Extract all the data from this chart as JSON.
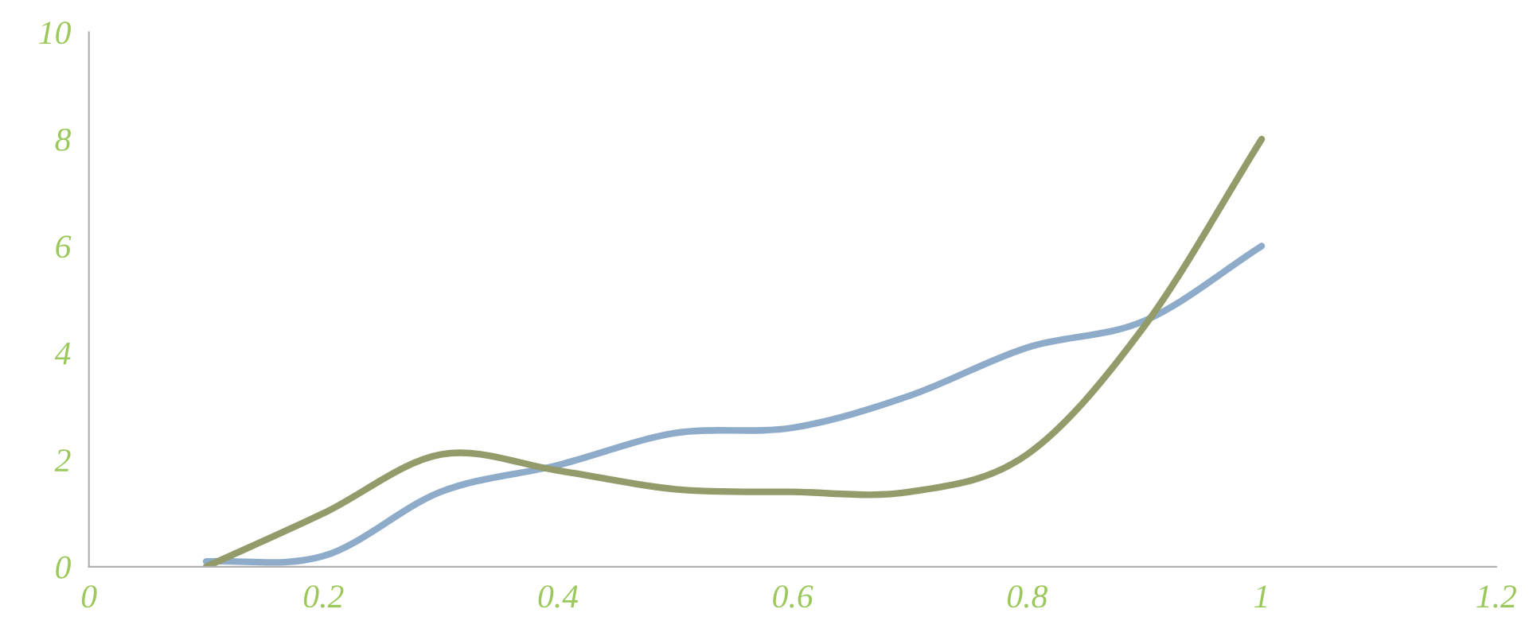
{
  "chart_data": {
    "type": "line",
    "x": [
      0.1,
      0.2,
      0.3,
      0.4,
      0.5,
      0.6,
      0.7,
      0.8,
      0.9,
      1.0
    ],
    "series": [
      {
        "color": "#8eacc9",
        "values": [
          0.1,
          0.2,
          1.4,
          1.9,
          2.5,
          2.6,
          3.2,
          4.1,
          4.6,
          6.0
        ]
      },
      {
        "color": "#939b6a",
        "values": [
          0.0,
          1.0,
          2.1,
          1.8,
          1.45,
          1.4,
          1.4,
          2.1,
          4.5,
          8.0
        ]
      }
    ],
    "xlim": [
      0,
      1.2
    ],
    "xticks": [
      0,
      0.2,
      0.4,
      0.6,
      0.8,
      1,
      1.2
    ],
    "ylim": [
      0,
      10
    ],
    "yticks": [
      0,
      2,
      4,
      6,
      8,
      10
    ],
    "grid": false,
    "marker": "none",
    "line_style": "solid"
  }
}
